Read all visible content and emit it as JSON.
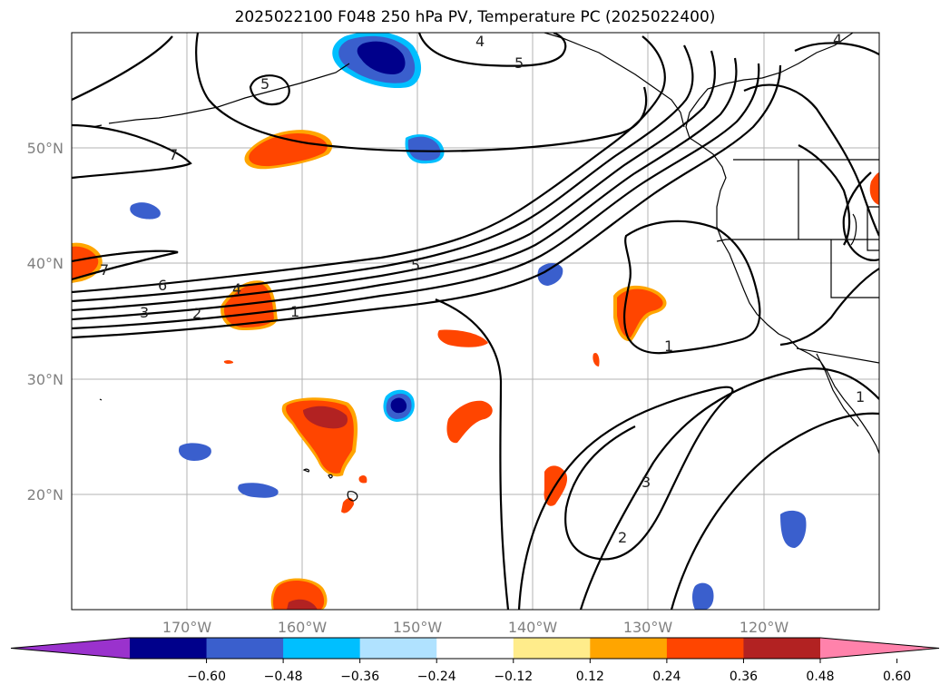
{
  "title": "2025022100 F048 250 hPa PV, Temperature PC (2025022400)",
  "map": {
    "lat_labels": [
      "50°N",
      "40°N",
      "30°N",
      "20°N"
    ],
    "lon_labels": [
      "170°W",
      "160°W",
      "150°W",
      "140°W",
      "130°W",
      "120°W"
    ],
    "contour_labels": [
      "4",
      "5",
      "5",
      "7",
      "4",
      "6",
      "4",
      "3",
      "2",
      "1",
      "5",
      "1",
      "3",
      "2",
      "1",
      "7"
    ]
  },
  "colorbar": {
    "colors": [
      "#9a32cd",
      "#00008b",
      "#3a5fcd",
      "#00bfff",
      "#b0e2ff",
      "#ffffff",
      "#ffec8b",
      "#ffa500",
      "#ff4500",
      "#b22222",
      "#ff82ab"
    ],
    "tick_labels": [
      "−0.60",
      "−0.48",
      "−0.36",
      "−0.24",
      "−0.12",
      "0.12",
      "0.24",
      "0.36",
      "0.48",
      "0.60"
    ]
  }
}
